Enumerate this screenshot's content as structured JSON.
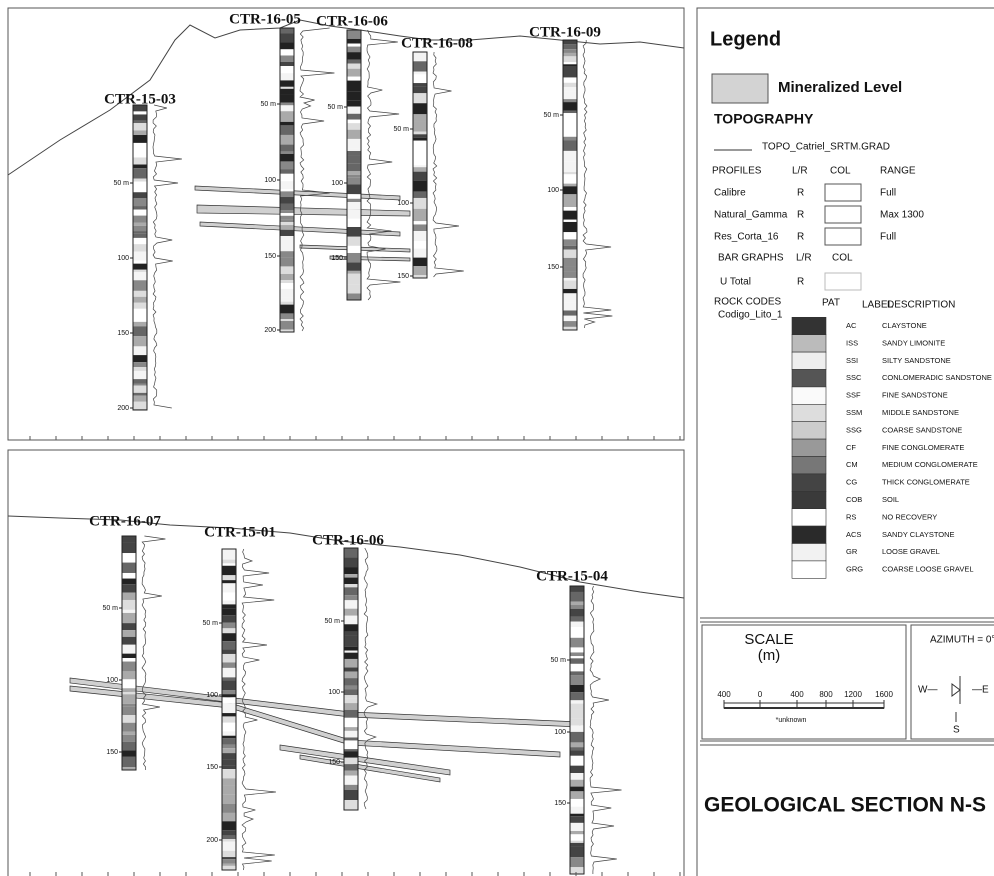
{
  "sections": [
    {
      "wells": [
        {
          "name": "CTR-15-03",
          "depths": [
            "50 m",
            "100",
            "150",
            "200"
          ]
        },
        {
          "name": "CTR-16-05",
          "depths": [
            "50 m",
            "100",
            "150",
            "200"
          ]
        },
        {
          "name": "CTR-16-06",
          "depths": [
            "50 m",
            "100",
            "150"
          ]
        },
        {
          "name": "CTR-16-08",
          "depths": [
            "50 m",
            "100",
            "150"
          ]
        },
        {
          "name": "CTR-16-09",
          "depths": [
            "50 m",
            "100",
            "150"
          ]
        }
      ]
    },
    {
      "wells": [
        {
          "name": "CTR-16-07",
          "depths": [
            "50 m",
            "100",
            "150"
          ]
        },
        {
          "name": "CTR-15-01",
          "depths": [
            "50 m",
            "100",
            "150",
            "200"
          ]
        },
        {
          "name": "CTR-16-06",
          "depths": [
            "50 m",
            "100",
            "150"
          ]
        },
        {
          "name": "CTR-15-04",
          "depths": [
            "50 m",
            "100",
            "150"
          ]
        }
      ]
    }
  ],
  "legend": {
    "title": "Legend",
    "mineralized": "Mineralized Level",
    "topography_heading": "TOPOGRAPHY",
    "topography_item": "TOPO_Catriel_SRTM.GRAD",
    "profiles_header": [
      "PROFILES",
      "L/R",
      "COL",
      "RANGE"
    ],
    "profiles": [
      [
        "Calibre",
        "R",
        "Full"
      ],
      [
        "Natural_Gamma",
        "R",
        "Max 1300"
      ],
      [
        "Res_Corta_16",
        "R",
        "Full"
      ]
    ],
    "bar_graphs_header": [
      "BAR GRAPHS",
      "L/R",
      "COL"
    ],
    "bar_graphs": [
      [
        "U Total",
        "R"
      ]
    ],
    "rock_codes_heading": "ROCK CODES",
    "rock_codes_field": "Codigo_Lito_1",
    "rock_codes_header": [
      "PAT",
      "LABEL",
      "DESCRIPTION"
    ],
    "rock_codes": [
      [
        "AC",
        "CLAYSTONE"
      ],
      [
        "ISS",
        "SANDY LIMONITE"
      ],
      [
        "SSI",
        "SILTY SANDSTONE"
      ],
      [
        "SSC",
        "CONLOMERADIC SANDSTONE"
      ],
      [
        "SSF",
        "FINE SANDSTONE"
      ],
      [
        "SSM",
        "MIDDLE SANDSTONE"
      ],
      [
        "SSG",
        "COARSE SANDSTONE"
      ],
      [
        "CF",
        "FINE  CONGLOMERATE"
      ],
      [
        "CM",
        "MEDIUM CONGLOMERATE"
      ],
      [
        "CG",
        "THICK CONGLOMERATE"
      ],
      [
        "COB",
        "SOIL"
      ],
      [
        "RS",
        "NO RECOVERY"
      ],
      [
        "ACS",
        "SANDY CLAYSTONE"
      ],
      [
        "GR",
        "LOOSE GRAVEL"
      ],
      [
        "GRG",
        "COARSE LOOSE GRAVEL"
      ]
    ]
  },
  "scale": {
    "title": "SCALE",
    "unit": "(m)",
    "ticks": [
      "400",
      "0",
      "400",
      "800",
      "1200",
      "1600"
    ],
    "note": "*unknown"
  },
  "azimuth": {
    "label": "AZIMUTH = 0°",
    "west": "W—",
    "east": "—E",
    "south": "S"
  },
  "title": "GEOLOGICAL SECTION N-S"
}
